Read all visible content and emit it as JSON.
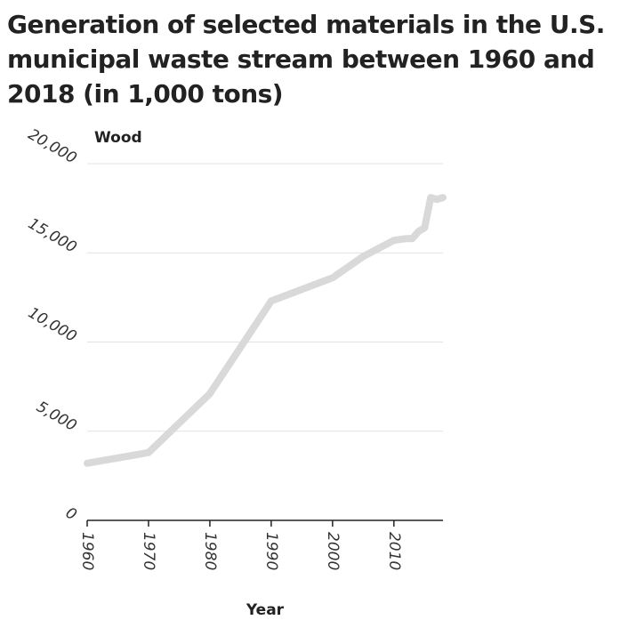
{
  "chart_data": {
    "type": "line",
    "title": "Generation of selected materials in the U.S. municipal waste stream between 1960 and 2018 (in 1,000 tons)",
    "xlabel": "Year",
    "ylabel": "Wood",
    "xlim": [
      1960,
      2018
    ],
    "ylim": [
      0,
      20000
    ],
    "x_ticks": [
      1960,
      1970,
      1980,
      1990,
      2000,
      2010
    ],
    "y_ticks": [
      0,
      5000,
      10000,
      15000,
      20000
    ],
    "x_tick_labels": [
      "1960",
      "1970",
      "1980",
      "1990",
      "2000",
      "2010"
    ],
    "y_tick_labels": [
      "0",
      "5,000",
      "10,000",
      "15,000",
      "20,000"
    ],
    "grid": "horizontal",
    "line_color": "#d9d9d9",
    "series": [
      {
        "x": [
          1960,
          1970,
          1980,
          1990,
          2000,
          2005,
          2010,
          2012,
          2013,
          2014,
          2015,
          2016,
          2017,
          2018
        ],
        "values": [
          3200,
          3800,
          7100,
          12300,
          13600,
          14800,
          15700,
          15800,
          15800,
          16200,
          16400,
          18100,
          18000,
          18100
        ]
      }
    ]
  }
}
